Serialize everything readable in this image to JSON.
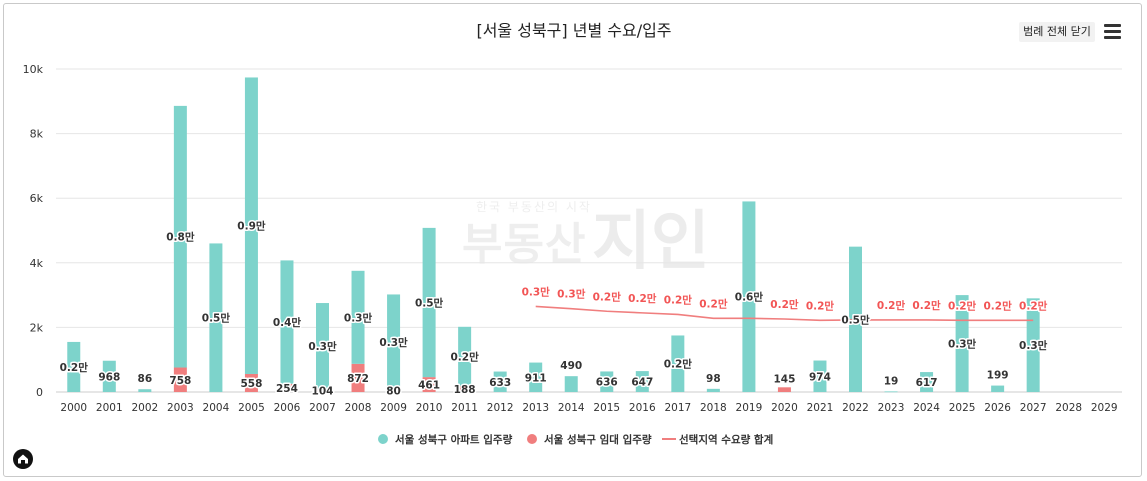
{
  "header": {
    "legend_toggle_label": "범례 전체 닫기"
  },
  "watermark": {
    "small": "한국 부동산의 시작",
    "big": "부동산",
    "logo": "지인"
  },
  "chart_data": {
    "type": "bar",
    "title": "[서울 성북구] 년별 수요/입주",
    "categories": [
      "2000",
      "2001",
      "2002",
      "2003",
      "2004",
      "2005",
      "2006",
      "2007",
      "2008",
      "2009",
      "2010",
      "2011",
      "2012",
      "2013",
      "2014",
      "2015",
      "2016",
      "2017",
      "2018",
      "2019",
      "2020",
      "2021",
      "2022",
      "2023",
      "2024",
      "2025",
      "2026",
      "2027",
      "2028",
      "2029"
    ],
    "y_ticks": [
      "0",
      "2k",
      "4k",
      "6k",
      "8k",
      "10k"
    ],
    "ylim": [
      0,
      10000
    ],
    "stacked": true,
    "grid": true,
    "legend_position": "bottom",
    "series": [
      {
        "name": "서울 성북구 아파트 입주량",
        "color": "#7dd3cb",
        "values": [
          1550,
          968,
          86,
          8100,
          4600,
          9180,
          3820,
          2650,
          2880,
          2940,
          4620,
          1830,
          633,
          911,
          490,
          636,
          647,
          1750,
          98,
          5900,
          0,
          974,
          4500,
          19,
          617,
          3000,
          199,
          2900,
          0,
          0
        ],
        "labels": [
          "0.2만",
          "968",
          "86",
          "0.8만",
          "0.5만",
          "0.9만",
          "0.4만",
          "0.3만",
          "0.3만",
          "0.3만",
          "0.5만",
          "0.2만",
          "633",
          "911",
          "490",
          "636",
          "647",
          "0.2만",
          "98",
          "0.6만",
          "",
          "974",
          "0.5만",
          "19",
          "617",
          "0.3만",
          "199",
          "0.3만",
          "",
          ""
        ]
      },
      {
        "name": "서울 성북구 임대 입주량",
        "color": "#f07e7e",
        "values": [
          0,
          0,
          0,
          758,
          0,
          558,
          254,
          104,
          872,
          80,
          461,
          188,
          0,
          0,
          0,
          0,
          0,
          0,
          0,
          0,
          145,
          0,
          0,
          0,
          0,
          0,
          0,
          0,
          0,
          0
        ],
        "labels": [
          "",
          "",
          "",
          "758",
          "",
          "558",
          "254",
          "104",
          "872",
          "80",
          "461",
          "188",
          "",
          "",
          "",
          "",
          "",
          "",
          "",
          "",
          "145",
          "",
          "",
          "",
          "",
          "",
          "",
          "",
          "",
          ""
        ]
      },
      {
        "name": "선택지역 수요량 합계",
        "type": "line",
        "color": "#f07e7e",
        "values": [
          null,
          null,
          null,
          null,
          null,
          null,
          null,
          null,
          null,
          null,
          null,
          null,
          null,
          2650,
          2580,
          2500,
          2450,
          2400,
          2280,
          2280,
          2260,
          2220,
          2230,
          2230,
          2230,
          2220,
          2220,
          2220,
          null,
          null
        ],
        "labels": [
          "",
          "",
          "",
          "",
          "",
          "",
          "",
          "",
          "",
          "",
          "",
          "",
          "",
          "0.3만",
          "0.3만",
          "0.2만",
          "0.2만",
          "0.2만",
          "0.2만",
          "",
          "0.2만",
          "0.2만",
          "",
          "0.2만",
          "0.2만",
          "0.2만",
          "0.2만",
          "0.2만",
          "",
          ""
        ]
      }
    ]
  }
}
